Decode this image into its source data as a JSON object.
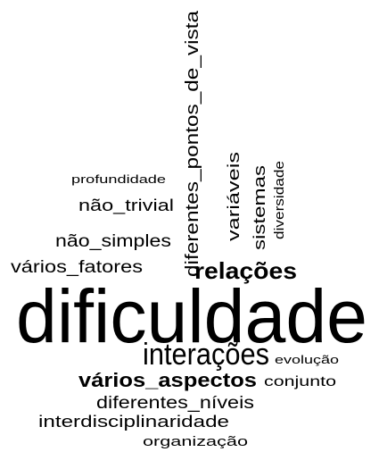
{
  "words": [
    {
      "text": "dificuldade"
    },
    {
      "text": "interações"
    },
    {
      "text": "evolução"
    },
    {
      "text": "vários_aspectos"
    },
    {
      "text": "conjunto"
    },
    {
      "text": "diferentes_níveis"
    },
    {
      "text": "interdisciplinaridade"
    },
    {
      "text": "organização"
    },
    {
      "text": "vários_fatores"
    },
    {
      "text": "relações"
    },
    {
      "text": "não_simples"
    },
    {
      "text": "não_trivial"
    },
    {
      "text": "profundidade"
    },
    {
      "text": "diferentes_pontos_de_vista"
    },
    {
      "text": "variáveis"
    },
    {
      "text": "sistemas"
    },
    {
      "text": "diversidade"
    }
  ]
}
